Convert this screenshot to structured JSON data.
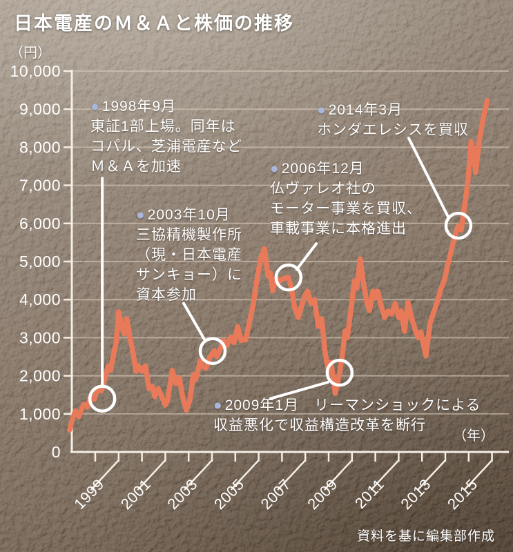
{
  "title": "日本電産のＭ＆Ａと株価の推移",
  "y_axis_unit": "（円）",
  "x_axis_unit": "（年）",
  "credit": "資料を基に編集部作成",
  "colors": {
    "line": "#e87a5a",
    "marker": "#ffffff",
    "leader": "#ffffff",
    "axis": "#f5efe6",
    "grid": "#d8ccbc",
    "bullet": "#a9b6da",
    "text": "#ffffff"
  },
  "chart_data": {
    "type": "line",
    "title": "日本電産のＭ＆Ａと株価の推移",
    "ylabel": "（円）",
    "xlabel": "（年）",
    "ylim": [
      0,
      10000
    ],
    "xlim": [
      1997.7,
      2016.6
    ],
    "grid": true,
    "legend": "none",
    "y_tick_labels": [
      "0",
      "1,000",
      "2,000",
      "3,000",
      "4,000",
      "5,000",
      "6,000",
      "7,000",
      "8,000",
      "9,000",
      "10,000"
    ],
    "x_tick_years": [
      1999,
      2000,
      2001,
      2002,
      2003,
      2004,
      2005,
      2006,
      2007,
      2008,
      2009,
      2010,
      2011,
      2012,
      2013,
      2014,
      2015,
      2016
    ],
    "x_labels": [
      "1999",
      "2001",
      "2003",
      "2005",
      "2007",
      "2009",
      "2011",
      "2013",
      "2015"
    ],
    "series": [
      {
        "name": "株価",
        "points": [
          [
            1997.9,
            580
          ],
          [
            1998.0,
            820
          ],
          [
            1998.15,
            1080
          ],
          [
            1998.3,
            930
          ],
          [
            1998.5,
            1250
          ],
          [
            1998.65,
            1180
          ],
          [
            1998.8,
            1450
          ],
          [
            1998.95,
            1380
          ],
          [
            1999.1,
            1650
          ],
          [
            1999.25,
            1600
          ],
          [
            1999.45,
            2000
          ],
          [
            1999.55,
            2250
          ],
          [
            1999.65,
            2150
          ],
          [
            1999.8,
            2600
          ],
          [
            1999.9,
            2900
          ],
          [
            2000.0,
            3680
          ],
          [
            2000.15,
            3250
          ],
          [
            2000.25,
            3100
          ],
          [
            2000.35,
            3500
          ],
          [
            2000.5,
            2950
          ],
          [
            2000.6,
            2660
          ],
          [
            2000.75,
            2120
          ],
          [
            2000.85,
            2260
          ],
          [
            2001.0,
            2120
          ],
          [
            2001.15,
            2260
          ],
          [
            2001.3,
            1660
          ],
          [
            2001.45,
            1720
          ],
          [
            2001.55,
            1450
          ],
          [
            2001.7,
            1660
          ],
          [
            2001.85,
            1450
          ],
          [
            2002.0,
            1230
          ],
          [
            2002.1,
            1360
          ],
          [
            2002.3,
            2140
          ],
          [
            2002.45,
            1800
          ],
          [
            2002.6,
            1950
          ],
          [
            2002.75,
            1420
          ],
          [
            2002.9,
            1100
          ],
          [
            2003.05,
            1350
          ],
          [
            2003.2,
            2030
          ],
          [
            2003.3,
            1900
          ],
          [
            2003.5,
            2390
          ],
          [
            2003.6,
            2250
          ],
          [
            2003.75,
            2200
          ],
          [
            2003.9,
            2480
          ],
          [
            2004.0,
            2570
          ],
          [
            2004.1,
            2660
          ],
          [
            2004.2,
            2500
          ],
          [
            2004.35,
            2700
          ],
          [
            2004.5,
            2930
          ],
          [
            2004.65,
            2800
          ],
          [
            2004.8,
            3020
          ],
          [
            2004.95,
            2870
          ],
          [
            2005.1,
            3290
          ],
          [
            2005.25,
            2930
          ],
          [
            2005.45,
            2950
          ],
          [
            2005.6,
            3410
          ],
          [
            2005.75,
            3800
          ],
          [
            2005.9,
            4400
          ],
          [
            2006.0,
            4800
          ],
          [
            2006.1,
            5100
          ],
          [
            2006.25,
            5340
          ],
          [
            2006.4,
            4620
          ],
          [
            2006.5,
            4700
          ],
          [
            2006.6,
            4230
          ],
          [
            2006.75,
            4560
          ],
          [
            2006.9,
            4480
          ],
          [
            2007.05,
            4550
          ],
          [
            2007.28,
            4580
          ],
          [
            2007.4,
            4310
          ],
          [
            2007.55,
            3770
          ],
          [
            2007.7,
            3530
          ],
          [
            2007.85,
            3850
          ],
          [
            2008.0,
            4130
          ],
          [
            2008.1,
            4220
          ],
          [
            2008.25,
            3900
          ],
          [
            2008.4,
            4000
          ],
          [
            2008.55,
            3300
          ],
          [
            2008.7,
            3500
          ],
          [
            2008.85,
            2600
          ],
          [
            2009.0,
            2100
          ],
          [
            2009.1,
            2350
          ],
          [
            2009.28,
            1540
          ],
          [
            2009.47,
            2080
          ],
          [
            2009.6,
            2600
          ],
          [
            2009.7,
            3170
          ],
          [
            2009.8,
            3000
          ],
          [
            2009.95,
            3710
          ],
          [
            2010.1,
            4490
          ],
          [
            2010.2,
            4300
          ],
          [
            2010.35,
            5070
          ],
          [
            2010.5,
            4400
          ],
          [
            2010.65,
            3900
          ],
          [
            2010.75,
            3710
          ],
          [
            2010.9,
            4220
          ],
          [
            2011.0,
            4040
          ],
          [
            2011.1,
            4220
          ],
          [
            2011.25,
            3840
          ],
          [
            2011.4,
            3530
          ],
          [
            2011.55,
            3700
          ],
          [
            2011.7,
            3620
          ],
          [
            2011.85,
            3900
          ],
          [
            2012.0,
            3530
          ],
          [
            2012.1,
            3700
          ],
          [
            2012.25,
            3170
          ],
          [
            2012.4,
            3930
          ],
          [
            2012.55,
            3530
          ],
          [
            2012.75,
            3130
          ],
          [
            2012.85,
            3000
          ],
          [
            2012.95,
            3150
          ],
          [
            2013.17,
            2520
          ],
          [
            2013.35,
            3400
          ],
          [
            2013.5,
            3660
          ],
          [
            2013.65,
            3950
          ],
          [
            2013.8,
            4250
          ],
          [
            2013.95,
            4500
          ],
          [
            2014.1,
            4900
          ],
          [
            2014.3,
            5400
          ],
          [
            2014.45,
            5750
          ],
          [
            2014.56,
            5940
          ],
          [
            2014.68,
            5830
          ],
          [
            2014.8,
            6350
          ],
          [
            2014.95,
            7000
          ],
          [
            2015.05,
            7700
          ],
          [
            2015.1,
            8150
          ],
          [
            2015.2,
            7850
          ],
          [
            2015.3,
            7340
          ],
          [
            2015.45,
            8150
          ],
          [
            2015.6,
            8700
          ],
          [
            2015.8,
            9230
          ]
        ]
      }
    ]
  },
  "annotations": [
    {
      "bullet": "●",
      "lines": [
        "1998年9月",
        "東証1部上場。同年は",
        "コパル、芝浦電産など",
        "Ｍ＆Ａを加速"
      ],
      "marker": {
        "year": 1999.3,
        "price": 1400
      },
      "leader": {
        "from": [
          1999.3,
          7190
        ],
        "to": [
          1999.3,
          1760
        ]
      }
    },
    {
      "bullet": "●",
      "lines": [
        "2003年10月",
        "三協精機製作所",
        "（現・日本電産",
        "サンキョー）に",
        "資本参加"
      ],
      "marker": {
        "year": 2004.03,
        "price": 2650
      },
      "leader": {
        "from": [
          2002.79,
          3900
        ],
        "to": [
          2003.68,
          2950
        ]
      }
    },
    {
      "bullet": "●",
      "lines": [
        "2006年12月",
        "仏ヴァレオ社の",
        "モーター事業を買収、",
        "車載事業に本格進出"
      ],
      "marker": {
        "year": 2007.28,
        "price": 4580
      },
      "leader": {
        "from": [
          2008.47,
          5470
        ],
        "to": [
          2007.63,
          4790
        ]
      }
    },
    {
      "bullet": "●",
      "lines": [
        "2014年3月",
        "ホンダエレシスを買収"
      ],
      "marker": {
        "year": 2014.56,
        "price": 5940
      },
      "leader": {
        "from": [
          2012.43,
          8240
        ],
        "to": [
          2014.13,
          6160
        ]
      }
    },
    {
      "bullet": "●",
      "lines": [
        "2009年1月　リーマンショックによる",
        "収益悪化で収益構造改革を断行"
      ],
      "marker": {
        "year": 2009.47,
        "price": 2080
      },
      "leader": {
        "from": [
          2006.51,
          1400
        ],
        "to": [
          2008.97,
          1830
        ]
      }
    }
  ]
}
